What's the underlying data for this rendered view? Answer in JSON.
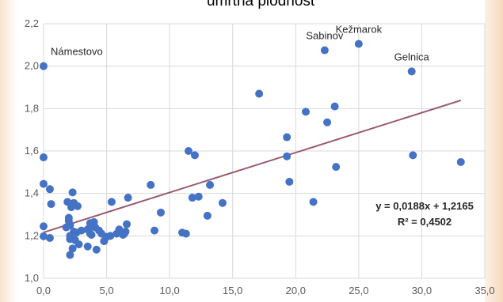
{
  "chart_data": {
    "type": "scatter",
    "title": "umrtná plodnosť",
    "xlim": [
      0,
      35
    ],
    "ylim": [
      1.0,
      2.2
    ],
    "x_ticks": [
      "0,0",
      "5,0",
      "10,0",
      "15,0",
      "20,0",
      "25,0",
      "30,0",
      "35,0"
    ],
    "y_ticks": [
      "1,0",
      "1,2",
      "1,4",
      "1,6",
      "1,8",
      "2,0",
      "2,2"
    ],
    "grid": true,
    "colors": {
      "points": "#4472c4",
      "trend": "#c0504d",
      "trend_dots": "#4472c4"
    },
    "points": [
      [
        0.0,
        2.0
      ],
      [
        0.0,
        1.57
      ],
      [
        0.0,
        1.445
      ],
      [
        0.0,
        1.245
      ],
      [
        0.0,
        1.198
      ],
      [
        0.5,
        1.42
      ],
      [
        0.6,
        1.35
      ],
      [
        0.5,
        1.19
      ],
      [
        1.8,
        1.24
      ],
      [
        1.9,
        1.36
      ],
      [
        2.0,
        1.285
      ],
      [
        2.0,
        1.27
      ],
      [
        2.1,
        1.25
      ],
      [
        2.1,
        1.2
      ],
      [
        2.1,
        1.185
      ],
      [
        2.2,
        1.335
      ],
      [
        2.3,
        1.405
      ],
      [
        2.4,
        1.355
      ],
      [
        2.4,
        1.22
      ],
      [
        2.3,
        1.14
      ],
      [
        2.1,
        1.11
      ],
      [
        2.6,
        1.215
      ],
      [
        2.7,
        1.34
      ],
      [
        2.8,
        1.16
      ],
      [
        2.5,
        1.18
      ],
      [
        3.0,
        1.225
      ],
      [
        3.5,
        1.23
      ],
      [
        3.6,
        1.235
      ],
      [
        3.7,
        1.26
      ],
      [
        3.7,
        1.21
      ],
      [
        3.8,
        1.205
      ],
      [
        3.5,
        1.15
      ],
      [
        4.0,
        1.265
      ],
      [
        4.1,
        1.24
      ],
      [
        4.2,
        1.135
      ],
      [
        4.4,
        1.225
      ],
      [
        4.6,
        1.21
      ],
      [
        4.8,
        1.175
      ],
      [
        5.0,
        1.195
      ],
      [
        5.3,
        1.2
      ],
      [
        5.4,
        1.36
      ],
      [
        5.8,
        1.21
      ],
      [
        6.0,
        1.23
      ],
      [
        6.3,
        1.205
      ],
      [
        6.5,
        1.22
      ],
      [
        6.6,
        1.255
      ],
      [
        6.7,
        1.38
      ],
      [
        6.4,
        1.21
      ],
      [
        8.5,
        1.44
      ],
      [
        8.8,
        1.225
      ],
      [
        9.3,
        1.31
      ],
      [
        11.0,
        1.215
      ],
      [
        11.3,
        1.21
      ],
      [
        11.5,
        1.6
      ],
      [
        11.8,
        1.38
      ],
      [
        12.0,
        1.58
      ],
      [
        12.3,
        1.385
      ],
      [
        13.0,
        1.295
      ],
      [
        13.2,
        1.44
      ],
      [
        14.2,
        1.355
      ],
      [
        17.1,
        1.87
      ],
      [
        19.3,
        1.665
      ],
      [
        19.3,
        1.575
      ],
      [
        19.5,
        1.455
      ],
      [
        20.8,
        1.785
      ],
      [
        21.4,
        1.36
      ],
      [
        22.3,
        2.075
      ],
      [
        22.5,
        1.735
      ],
      [
        23.1,
        1.81
      ],
      [
        23.2,
        1.525
      ],
      [
        25.0,
        2.105
      ],
      [
        29.2,
        1.975
      ],
      [
        29.3,
        1.58
      ],
      [
        33.1,
        1.548
      ]
    ],
    "annotations": [
      {
        "text": "Námestovo",
        "x": 0.0,
        "y": 2.0
      },
      {
        "text": "Sabinov",
        "x": 22.3,
        "y": 2.075
      },
      {
        "text": "Kežmarok",
        "x": 25.0,
        "y": 2.105
      },
      {
        "text": "Gelnica",
        "x": 29.2,
        "y": 1.975
      }
    ],
    "trendline": {
      "slope": 0.0188,
      "intercept": 1.2165,
      "x_range": [
        0,
        33.1
      ],
      "equation": "y = 0,0188x + 1,2165",
      "r_squared": "R² = 0,4502"
    }
  }
}
